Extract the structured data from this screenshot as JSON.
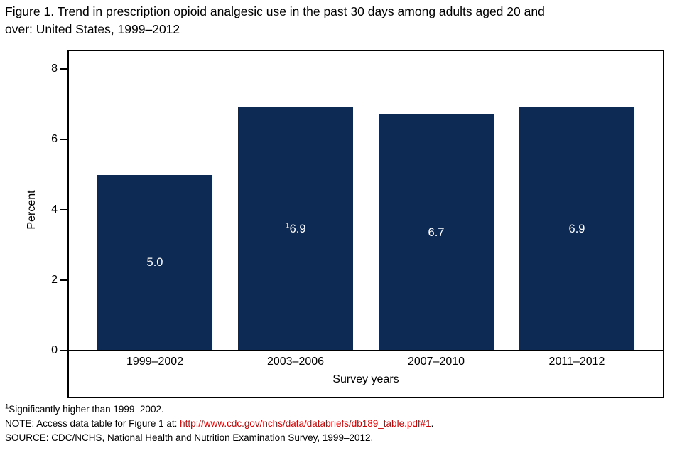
{
  "header": {
    "title_lines": [
      "Figure 1. Trend in prescription opioid analgesic use in the past 30 days among adults aged 20 and",
      "over: United States, 1999–2012"
    ]
  },
  "chart_data": {
    "type": "bar",
    "title": "Figure 1. Trend in prescription opioid analgesic use in the past 30 days among adults aged 20 and over: United States, 1999–2012",
    "categories": [
      "1999–2002",
      "2003–2006",
      "2007–2010",
      "2011–2012"
    ],
    "values": [
      5.0,
      6.9,
      6.7,
      6.9
    ],
    "bar_labels": [
      "5.0",
      "6.9",
      "6.7",
      "6.9"
    ],
    "bar_label_superscripts": [
      "",
      "1",
      "",
      ""
    ],
    "xlabel": "Survey years",
    "ylabel": "Percent",
    "ylim": [
      0,
      8
    ],
    "yticks": [
      0,
      2,
      4,
      6,
      8
    ],
    "grid": false,
    "legend": "none",
    "bar_color": "#0d2a54",
    "bar_label_color": "#ffffff"
  },
  "footnotes": {
    "note1_sup": "1",
    "note1": "Significantly higher than 1999–2002.",
    "note2_prefix": "NOTE: Access data table for Figure 1 at: ",
    "note2_link": "http://www.cdc.gov/nchs/data/databriefs/db189_table.pdf#1",
    "note2_suffix": ".",
    "source": "SOURCE: CDC/NCHS, National Health and Nutrition Examination Survey, 1999–2012."
  },
  "colors": {
    "link": "#cc0000",
    "text": "#000000",
    "bar": "#0d2a54"
  }
}
